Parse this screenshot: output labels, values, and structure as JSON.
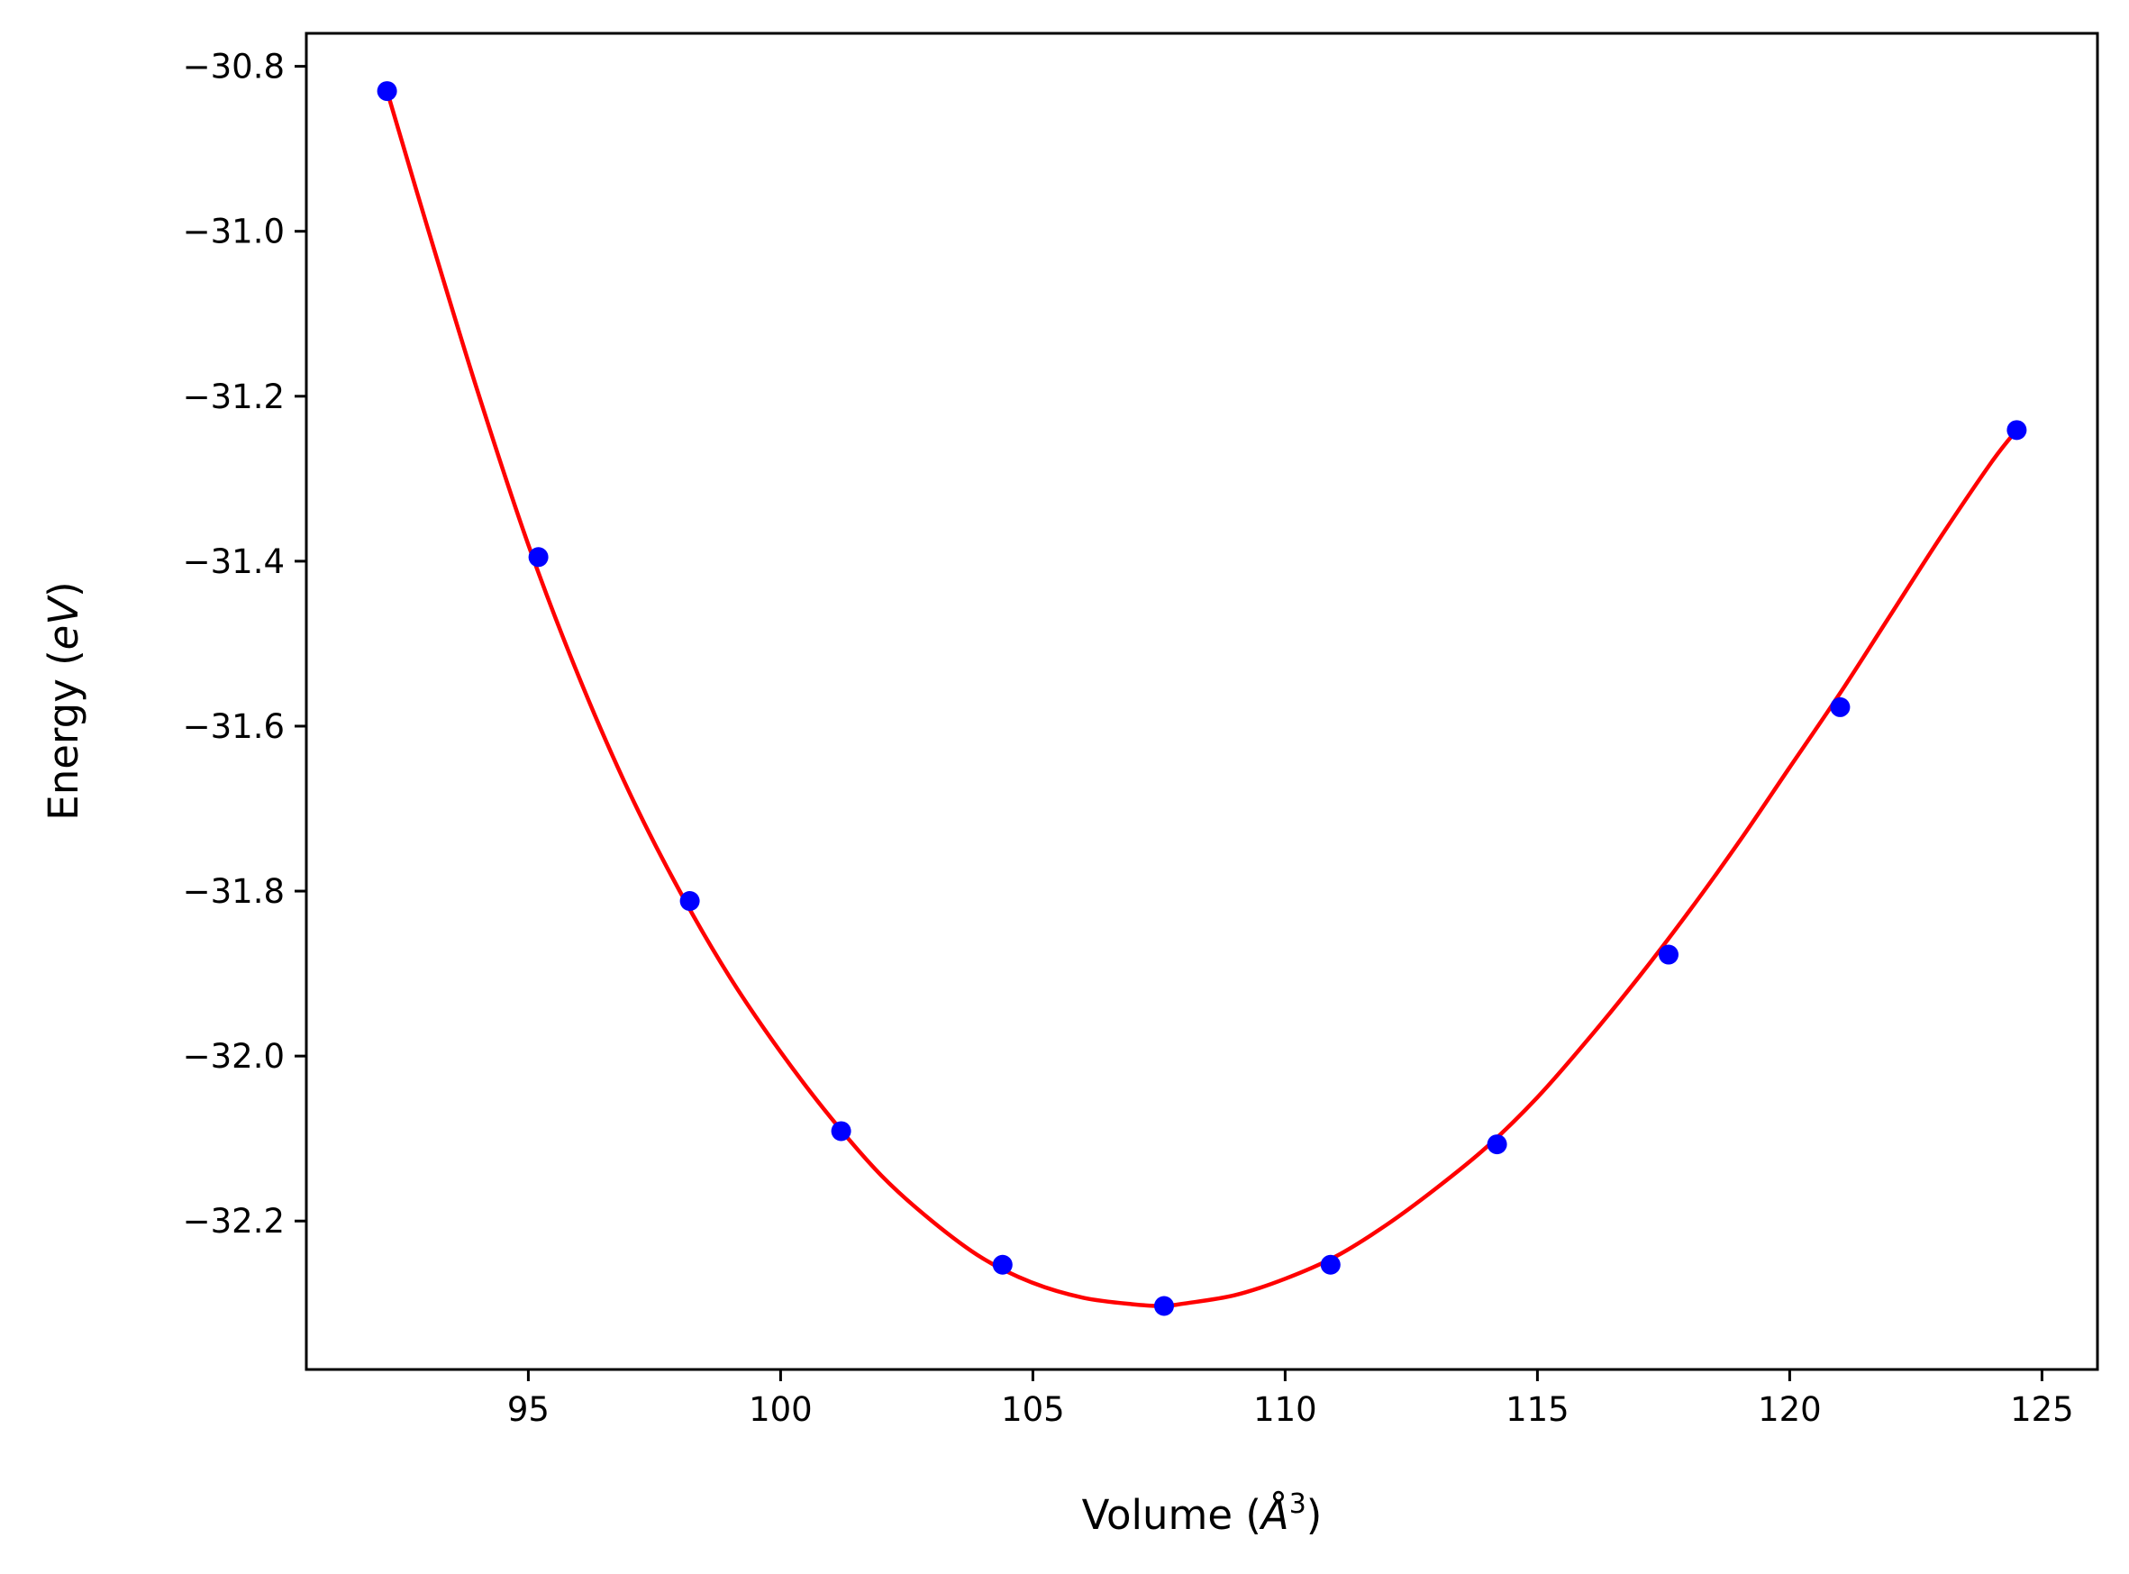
{
  "chart_data": {
    "type": "scatter",
    "xlabel": "Volume (Å³)",
    "xlabel_parts": {
      "prefix": "Volume (",
      "unit_symbol": "Å",
      "unit_power": "3",
      "suffix": ")"
    },
    "ylabel": "Energy (eV)",
    "ylabel_parts": {
      "prefix": "Energy (",
      "unit": "eV",
      "suffix": ")"
    },
    "xlim": [
      90.6,
      126.1
    ],
    "ylim": [
      -32.38,
      -30.76
    ],
    "xticks": [
      95,
      100,
      105,
      110,
      115,
      120,
      125
    ],
    "yticks": [
      -30.8,
      -31.0,
      -31.2,
      -31.4,
      -31.6,
      -31.8,
      -32.0,
      -32.2
    ],
    "ytick_labels": [
      "−30.8",
      "−31.0",
      "−31.2",
      "−31.4",
      "−31.6",
      "−31.8",
      "−32.0",
      "−32.2"
    ],
    "grid": false,
    "series": [
      {
        "kind": "points",
        "color": "#0000ff",
        "x": [
          92.2,
          95.2,
          98.2,
          101.2,
          104.4,
          107.6,
          110.9,
          114.2,
          117.6,
          121.0,
          124.5
        ],
        "y": [
          -30.83,
          -31.395,
          -31.812,
          -32.091,
          -32.253,
          -32.303,
          -32.253,
          -32.107,
          -31.877,
          -31.577,
          -31.241
        ]
      },
      {
        "kind": "fit-curve",
        "color": "#ff0000",
        "x": [
          92.2,
          93.0,
          94.0,
          95.0,
          96.0,
          97.0,
          98.0,
          99.0,
          100.0,
          101.0,
          102.0,
          103.0,
          104.0,
          105.0,
          106.0,
          107.0,
          107.6,
          108.0,
          109.0,
          110.0,
          111.0,
          112.0,
          113.0,
          114.0,
          115.0,
          116.0,
          117.0,
          118.0,
          119.0,
          120.0,
          121.0,
          122.0,
          123.0,
          124.0,
          124.5
        ],
        "y": [
          -30.83,
          -30.995,
          -31.195,
          -31.38,
          -31.54,
          -31.68,
          -31.8,
          -31.905,
          -31.995,
          -32.075,
          -32.145,
          -32.2,
          -32.245,
          -32.275,
          -32.293,
          -32.301,
          -32.303,
          -32.3,
          -32.29,
          -32.27,
          -32.243,
          -32.205,
          -32.16,
          -32.11,
          -32.05,
          -31.98,
          -31.905,
          -31.825,
          -31.74,
          -31.65,
          -31.56,
          -31.465,
          -31.37,
          -31.28,
          -31.241
        ]
      }
    ]
  }
}
